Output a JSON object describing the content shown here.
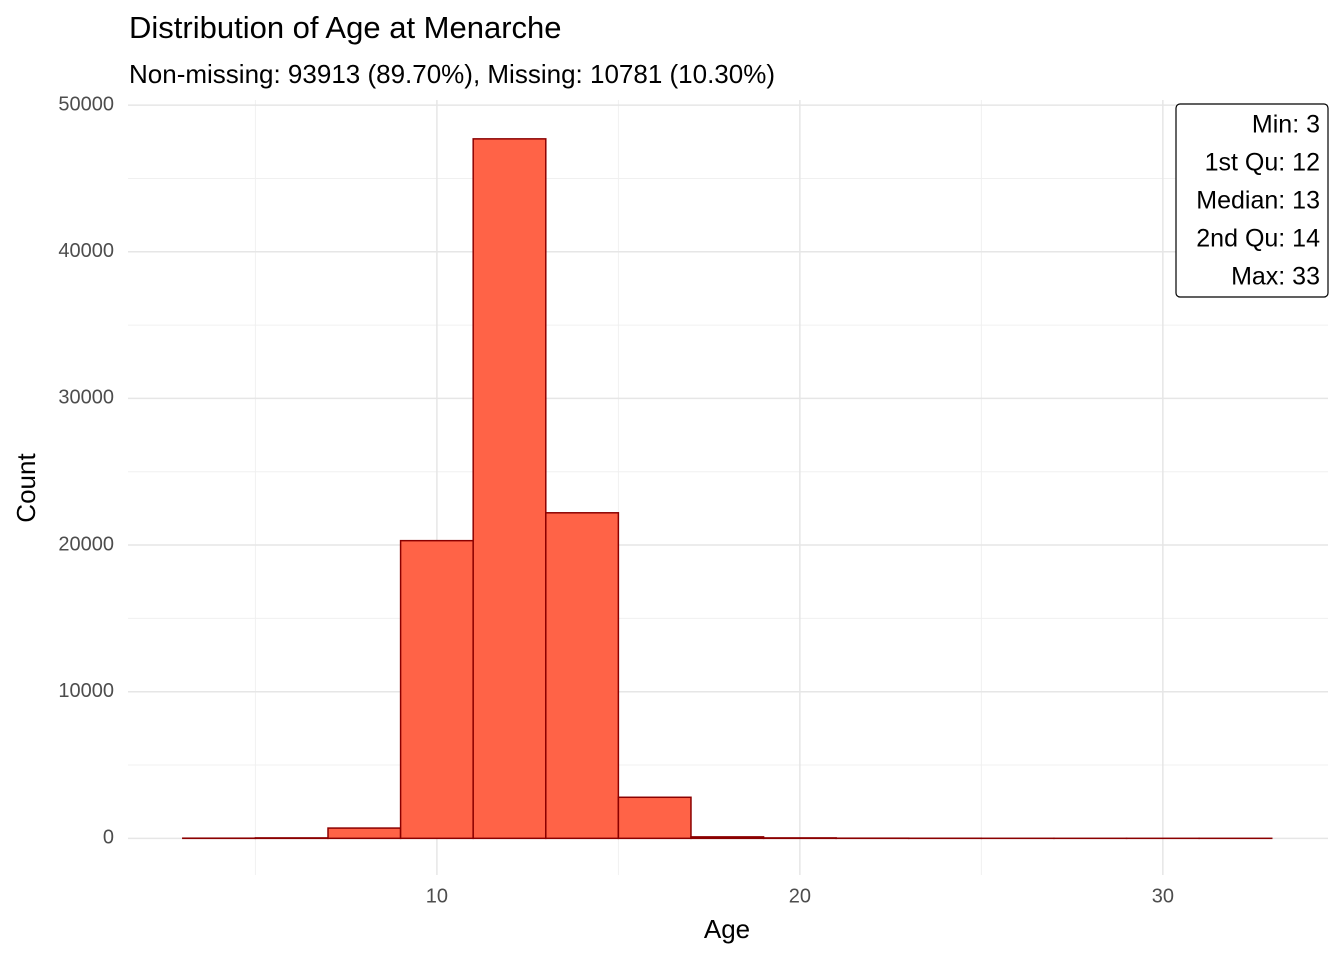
{
  "chart_data": {
    "type": "histogram",
    "title": "Distribution of Age at Menarche",
    "subtitle": "Non-missing: 93913 (89.70%), Missing: 10781 (10.30%)",
    "x_label": "Age",
    "y_label": "Count",
    "bins": [
      3,
      5,
      7,
      9,
      11,
      13,
      15,
      17,
      19,
      21,
      23,
      25,
      27,
      29,
      31,
      33
    ],
    "values": [
      10,
      30,
      700,
      20300,
      47700,
      22200,
      2800,
      100,
      30,
      10,
      5,
      2,
      1,
      1,
      1
    ],
    "color": "#ff6347",
    "edge_color": "#8b0000",
    "xlim": [
      1.49,
      34.55
    ],
    "xticks": [
      10,
      20,
      30
    ],
    "ylim": [
      -2500,
      50350
    ],
    "yticks": [
      0,
      10000,
      20000,
      30000,
      40000,
      50000
    ],
    "grid": true,
    "stats": [
      "Min: 3",
      "1st Qu: 12",
      "Median: 13",
      "2nd Qu: 14",
      "Max: 33"
    ]
  }
}
